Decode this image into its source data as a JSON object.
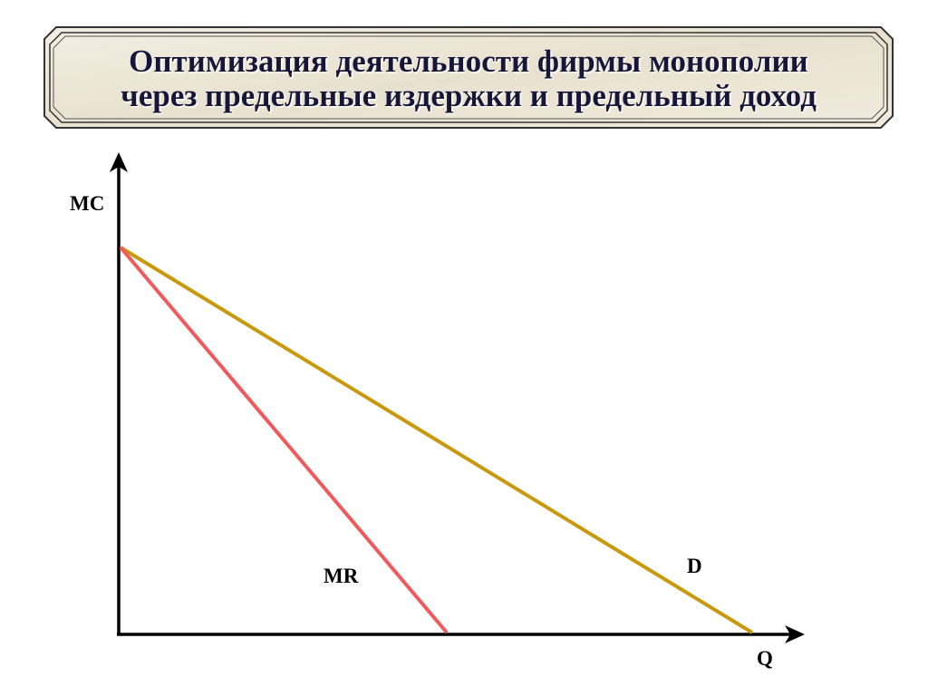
{
  "title": {
    "lines": [
      "Оптимизация деятельности фирмы монополии",
      "через предельные издержки и предельный доход"
    ]
  },
  "axes": {
    "y_label": "MC",
    "x_label": "Q"
  },
  "curves": [
    {
      "label": "MR"
    },
    {
      "label": "D"
    }
  ]
}
